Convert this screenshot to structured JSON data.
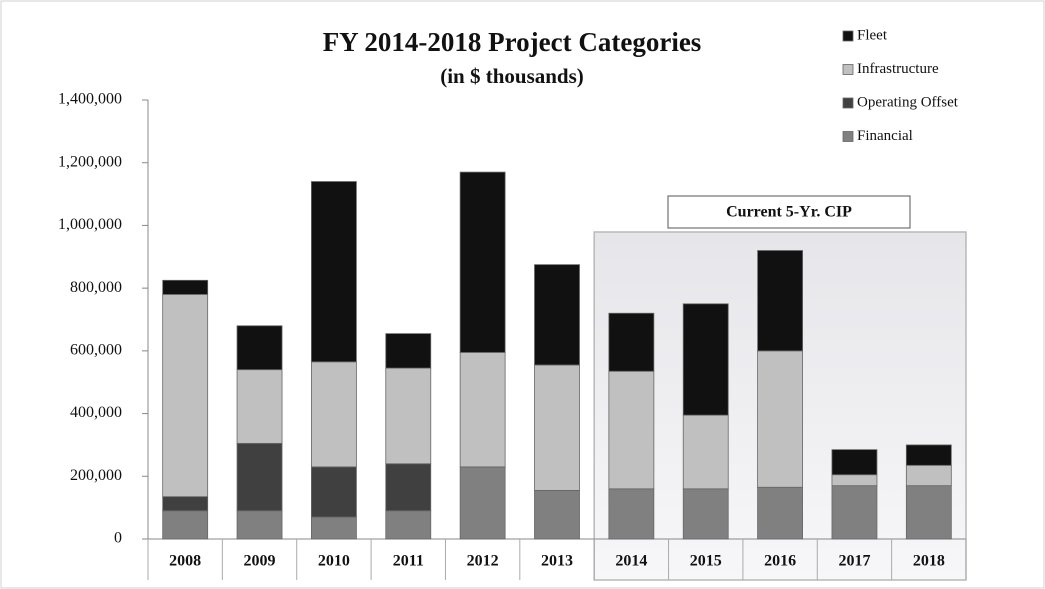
{
  "chart_data": {
    "type": "stacked_bar",
    "title": "FY 2014-2018 Project Categories",
    "subtitle": "(in $ thousands)",
    "annotation": "Current 5-Yr. CIP",
    "categories": [
      "2008",
      "2009",
      "2010",
      "2011",
      "2012",
      "2013",
      "2014",
      "2015",
      "2016",
      "2017",
      "2018"
    ],
    "series": [
      {
        "name": "Financial",
        "color": "#808080",
        "values": [
          90000,
          90000,
          70000,
          90000,
          230000,
          155000,
          160000,
          160000,
          165000,
          170000,
          170000
        ]
      },
      {
        "name": "Operating Offset",
        "color": "#404040",
        "values": [
          45000,
          215000,
          160000,
          150000,
          0,
          0,
          0,
          0,
          0,
          0,
          0
        ]
      },
      {
        "name": "Infrastructure",
        "color": "#c0c0c0",
        "values": [
          645000,
          235000,
          335000,
          305000,
          365000,
          400000,
          375000,
          235000,
          435000,
          35000,
          65000
        ]
      },
      {
        "name": "Fleet",
        "color": "#111111",
        "values": [
          45000,
          140000,
          575000,
          110000,
          575000,
          320000,
          185000,
          355000,
          320000,
          80000,
          65000
        ]
      }
    ],
    "ylim": [
      0,
      1400000
    ],
    "yticks": [
      0,
      {
        "value": 200000,
        "label": "200,000"
      },
      {
        "value": 400000,
        "label": "400,000"
      },
      {
        "value": 600000,
        "label": "600,000"
      },
      {
        "value": 800000,
        "label": "800,000"
      },
      {
        "value": 1000000,
        "label": "1,000,000"
      },
      {
        "value": 1200000,
        "label": "1,200,000"
      },
      {
        "value": 1400000,
        "label": "1,400,000"
      }
    ],
    "legend": "top-right"
  }
}
